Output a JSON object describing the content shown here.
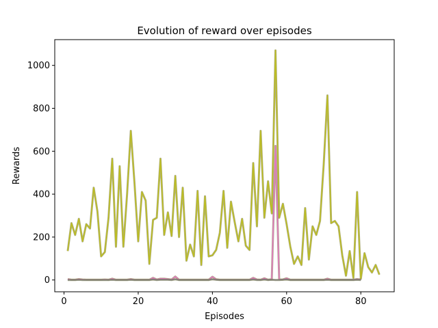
{
  "chart_data": {
    "type": "line",
    "title": "Evolution of reward over episodes",
    "xlabel": "Episodes",
    "ylabel": "Rewards",
    "xlim": [
      -2.5,
      89
    ],
    "ylim": [
      -55,
      1120
    ],
    "xticks": [
      0,
      20,
      40,
      60,
      80
    ],
    "yticks": [
      0,
      200,
      400,
      600,
      800,
      1000
    ],
    "grid": false,
    "series": [
      {
        "color": "#bcbd22",
        "x": [
          1,
          2,
          3,
          4,
          5,
          6,
          7,
          8,
          9,
          10,
          11,
          12,
          13,
          14,
          15,
          16,
          17,
          18,
          19,
          20,
          21,
          22,
          23,
          24,
          25,
          26,
          27,
          28,
          29,
          30,
          31,
          32,
          33,
          34,
          35,
          36,
          37,
          38,
          39,
          40,
          41,
          42,
          43,
          44,
          45,
          46,
          47,
          48,
          49,
          50,
          51,
          52,
          53,
          54,
          55,
          56,
          57,
          58,
          59,
          60,
          61,
          62,
          63,
          64,
          65,
          66,
          67,
          68,
          69,
          70,
          71,
          72,
          73,
          74,
          75,
          76,
          77,
          78,
          79,
          80,
          81,
          82,
          83,
          84,
          85
        ],
        "values": [
          135,
          265,
          210,
          285,
          180,
          260,
          240,
          430,
          320,
          110,
          130,
          290,
          565,
          155,
          530,
          155,
          400,
          695,
          450,
          180,
          410,
          370,
          75,
          280,
          290,
          565,
          210,
          315,
          205,
          485,
          200,
          430,
          90,
          165,
          110,
          415,
          70,
          390,
          110,
          115,
          140,
          220,
          415,
          150,
          365,
          270,
          180,
          285,
          160,
          140,
          545,
          250,
          695,
          290,
          460,
          310,
          1070,
          290,
          355,
          260,
          155,
          75,
          110,
          70,
          335,
          95,
          250,
          210,
          275,
          540,
          860,
          265,
          275,
          250,
          115,
          20,
          135,
          10,
          410,
          5,
          125,
          60,
          35,
          70,
          25
        ]
      },
      {
        "color": "#e377c2",
        "x": [
          1,
          2,
          3,
          4,
          5,
          6,
          7,
          8,
          9,
          10,
          11,
          12,
          13,
          14,
          15,
          16,
          17,
          18,
          19,
          20,
          21,
          22,
          23,
          24,
          25,
          26,
          27,
          28,
          29,
          30,
          31,
          32,
          33,
          34,
          35,
          36,
          37,
          38,
          39,
          40,
          41,
          42,
          43,
          44,
          45,
          46,
          47,
          48,
          49,
          50,
          51,
          52,
          53,
          54,
          55,
          56,
          57,
          58,
          59,
          60,
          61,
          62,
          63,
          64,
          65,
          66,
          67,
          68,
          69,
          70,
          71,
          72,
          73,
          74,
          75,
          76,
          77,
          78,
          79,
          80
        ],
        "values": [
          4,
          1,
          1,
          4,
          2,
          1,
          1,
          1,
          1,
          1,
          2,
          1,
          6,
          1,
          1,
          1,
          1,
          4,
          1,
          1,
          1,
          1,
          1,
          10,
          2,
          6,
          6,
          4,
          2,
          16,
          1,
          1,
          1,
          1,
          1,
          1,
          1,
          1,
          1,
          15,
          3,
          1,
          1,
          1,
          1,
          1,
          1,
          1,
          1,
          1,
          10,
          2,
          1,
          8,
          1,
          3,
          625,
          2,
          2,
          8,
          1,
          1,
          1,
          1,
          1,
          1,
          1,
          1,
          1,
          1,
          6,
          1,
          1,
          1,
          1,
          1,
          1,
          1,
          4,
          2
        ]
      },
      {
        "color": "#7f7f7f",
        "x": [
          1,
          2,
          3,
          4,
          5,
          6,
          7,
          8,
          9,
          10,
          11,
          12,
          13,
          14,
          15,
          16,
          17,
          18,
          19,
          20,
          21,
          22,
          23,
          24,
          25,
          26,
          27,
          28,
          29,
          30,
          31,
          32,
          33,
          34,
          35,
          36,
          37,
          38,
          39,
          40,
          41,
          42,
          43,
          44,
          45,
          46,
          47,
          48,
          49,
          50,
          51,
          52,
          53,
          54,
          55,
          56,
          57,
          58,
          59,
          60,
          61,
          62,
          63,
          64,
          65,
          66,
          67,
          68,
          69,
          70,
          71,
          72,
          73,
          74,
          75,
          76,
          77,
          78,
          79,
          80
        ],
        "values": [
          0,
          0,
          0,
          1,
          0,
          0,
          0,
          0,
          0,
          0,
          0,
          0,
          1,
          0,
          0,
          0,
          0,
          1,
          0,
          0,
          0,
          0,
          0,
          2,
          0,
          1,
          1,
          1,
          0,
          3,
          0,
          0,
          0,
          0,
          0,
          0,
          0,
          0,
          0,
          3,
          1,
          0,
          0,
          0,
          0,
          0,
          0,
          0,
          0,
          0,
          2,
          0,
          0,
          2,
          0,
          1,
          0,
          0,
          1,
          2,
          0,
          0,
          0,
          0,
          0,
          0,
          0,
          0,
          0,
          0,
          1,
          0,
          0,
          0,
          0,
          0,
          0,
          0,
          1,
          0
        ]
      }
    ]
  }
}
